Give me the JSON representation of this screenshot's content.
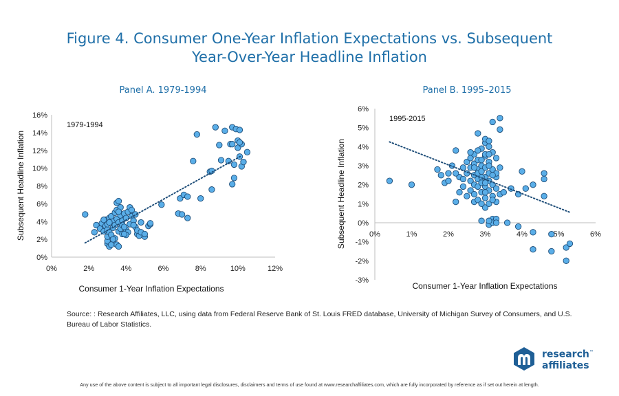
{
  "title": {
    "line1": "Figure 4. Consumer One-Year Inflation Expectations vs. Subsequent",
    "line2": "Year-Over-Year Headline Inflation"
  },
  "source": "Source: : Research Affiliates, LLC, using data from Federal Reserve Bank of St. Louis FRED database, University of Michigan Survey of Consumers, and U.S. Bureau of Labor Statistics.",
  "disclaimer": "Any use of the above content is subject to all important legal disclosures, disclaimers and terms of use found at www.researchaffiliates.com, which are fully incorporated by reference as if set out herein at length.",
  "logo": {
    "line1": "research",
    "line2": "affiliates",
    "mark_color": "#1f5f96"
  },
  "colors": {
    "title": "#1f6fa8",
    "marker_fill": "#5aaee8",
    "marker_stroke": "#1f4e79",
    "trend": "#1f4e79"
  },
  "chart_data": [
    {
      "type": "scatter",
      "title": "Panel A. 1979-1994",
      "annotation": "1979-1994",
      "xlabel": "Consumer 1-Year Inflation Expectations",
      "ylabel": "Subsequent Headline Inflation",
      "xlim": [
        0,
        12
      ],
      "ylim": [
        0,
        16
      ],
      "xticks": [
        0,
        2,
        4,
        6,
        8,
        10,
        12
      ],
      "xtick_labels": [
        "0%",
        "2%",
        "4%",
        "6%",
        "8%",
        "10%",
        "12%"
      ],
      "yticks": [
        0,
        2,
        4,
        6,
        8,
        10,
        12,
        14,
        16
      ],
      "ytick_labels": [
        "0%",
        "2%",
        "4%",
        "6%",
        "8%",
        "10%",
        "12%",
        "14%",
        "16%"
      ],
      "grid": false,
      "legend": "none",
      "trendline": {
        "style": "dotted",
        "x": [
          1.8,
          10.2
        ],
        "y": [
          1.6,
          11.4
        ]
      },
      "points": [
        [
          1.8,
          4.8
        ],
        [
          2.3,
          2.8
        ],
        [
          2.4,
          3.6
        ],
        [
          2.6,
          3.2
        ],
        [
          2.7,
          3.8
        ],
        [
          2.8,
          2.9
        ],
        [
          2.9,
          3.5
        ],
        [
          2.9,
          4.2
        ],
        [
          3.0,
          1.5
        ],
        [
          3.0,
          1.8
        ],
        [
          3.0,
          2.3
        ],
        [
          3.0,
          3.1
        ],
        [
          3.0,
          3.7
        ],
        [
          3.1,
          4.4
        ],
        [
          3.1,
          2.8
        ],
        [
          3.1,
          1.2
        ],
        [
          3.2,
          3.9
        ],
        [
          3.2,
          2.5
        ],
        [
          3.2,
          4.6
        ],
        [
          3.3,
          1.7
        ],
        [
          3.3,
          3.3
        ],
        [
          3.3,
          4.0
        ],
        [
          3.4,
          5.0
        ],
        [
          3.4,
          2.1
        ],
        [
          3.4,
          3.6
        ],
        [
          3.5,
          1.4
        ],
        [
          3.5,
          4.3
        ],
        [
          3.5,
          5.3
        ],
        [
          3.5,
          6.1
        ],
        [
          3.6,
          2.9
        ],
        [
          3.6,
          3.9
        ],
        [
          3.6,
          1.2
        ],
        [
          3.6,
          6.3
        ],
        [
          3.7,
          4.7
        ],
        [
          3.7,
          3.2
        ],
        [
          3.7,
          5.6
        ],
        [
          3.8,
          2.6
        ],
        [
          3.8,
          4.1
        ],
        [
          3.8,
          3.6
        ],
        [
          3.9,
          4.9
        ],
        [
          4.0,
          3.1
        ],
        [
          4.0,
          4.4
        ],
        [
          4.1,
          5.1
        ],
        [
          4.1,
          2.8
        ],
        [
          4.2,
          3.7
        ],
        [
          4.2,
          5.6
        ],
        [
          4.3,
          5.3
        ],
        [
          4.3,
          4.6
        ],
        [
          4.4,
          4.1
        ],
        [
          4.5,
          3.4
        ],
        [
          4.5,
          4.8
        ],
        [
          4.6,
          2.6
        ],
        [
          4.6,
          3.0
        ],
        [
          4.7,
          2.4
        ],
        [
          4.8,
          3.9
        ],
        [
          4.8,
          2.8
        ],
        [
          5.0,
          2.3
        ],
        [
          5.0,
          2.6
        ],
        [
          5.2,
          3.5
        ],
        [
          5.3,
          3.7
        ],
        [
          5.3,
          3.8
        ],
        [
          3.9,
          3.4
        ],
        [
          4.0,
          2.5
        ],
        [
          3.3,
          2.0
        ],
        [
          3.1,
          3.9
        ],
        [
          2.8,
          4.2
        ],
        [
          4.4,
          3.6
        ],
        [
          3.6,
          5.1
        ],
        [
          3.9,
          2.6
        ],
        [
          3.2,
          1.4
        ],
        [
          5.9,
          5.9
        ],
        [
          6.8,
          4.9
        ],
        [
          6.9,
          6.6
        ],
        [
          7.0,
          4.8
        ],
        [
          7.1,
          7.0
        ],
        [
          7.3,
          4.4
        ],
        [
          7.3,
          6.8
        ],
        [
          7.6,
          10.8
        ],
        [
          7.8,
          13.8
        ],
        [
          8.0,
          6.6
        ],
        [
          8.5,
          9.6
        ],
        [
          8.6,
          7.6
        ],
        [
          8.6,
          9.7
        ],
        [
          8.8,
          14.6
        ],
        [
          9.0,
          12.6
        ],
        [
          9.1,
          10.9
        ],
        [
          9.3,
          14.2
        ],
        [
          9.5,
          10.8
        ],
        [
          9.6,
          12.7
        ],
        [
          9.7,
          14.6
        ],
        [
          9.7,
          8.2
        ],
        [
          9.8,
          8.9
        ],
        [
          9.8,
          10.4
        ],
        [
          9.9,
          14.4
        ],
        [
          10.0,
          13.1
        ],
        [
          10.0,
          12.3
        ],
        [
          10.1,
          14.3
        ],
        [
          10.1,
          11.3
        ],
        [
          10.2,
          12.7
        ],
        [
          10.2,
          10.2
        ],
        [
          10.3,
          10.7
        ],
        [
          10.5,
          11.8
        ],
        [
          9.7,
          12.7
        ],
        [
          10.1,
          12.9
        ]
      ]
    },
    {
      "type": "scatter",
      "title": "Panel B. 1995–2015",
      "annotation": "1995-2015",
      "xlabel": "Consumer 1-Year Inflation Expectations",
      "ylabel": "Subsequent Headline Inflation",
      "xlim": [
        0,
        6
      ],
      "ylim": [
        -3,
        6
      ],
      "xticks": [
        0,
        1,
        2,
        3,
        4,
        5,
        6
      ],
      "xtick_labels": [
        "0%",
        "1%",
        "2%",
        "3%",
        "4%",
        "5%",
        "6%"
      ],
      "yticks": [
        -3,
        -2,
        -1,
        0,
        1,
        2,
        3,
        4,
        5,
        6
      ],
      "ytick_labels": [
        "-3%",
        "-2%",
        "-1%",
        "0%",
        "1%",
        "2%",
        "3%",
        "4%",
        "5%",
        "6%"
      ],
      "grid": false,
      "legend": "none",
      "trendline": {
        "style": "dotted",
        "x": [
          0.4,
          5.3
        ],
        "y": [
          4.25,
          0.55
        ]
      },
      "points": [
        [
          0.4,
          2.2
        ],
        [
          1.0,
          2.0
        ],
        [
          1.7,
          2.8
        ],
        [
          1.8,
          2.5
        ],
        [
          1.9,
          2.1
        ],
        [
          2.0,
          2.6
        ],
        [
          2.0,
          2.2
        ],
        [
          2.1,
          3.0
        ],
        [
          2.2,
          3.8
        ],
        [
          2.2,
          1.1
        ],
        [
          2.3,
          2.4
        ],
        [
          2.3,
          1.6
        ],
        [
          2.4,
          2.9
        ],
        [
          2.4,
          1.9
        ],
        [
          2.5,
          3.2
        ],
        [
          2.5,
          2.6
        ],
        [
          2.5,
          1.4
        ],
        [
          2.6,
          3.4
        ],
        [
          2.6,
          2.2
        ],
        [
          2.6,
          1.7
        ],
        [
          2.6,
          2.9
        ],
        [
          2.7,
          1.1
        ],
        [
          2.7,
          2.5
        ],
        [
          2.7,
          3.1
        ],
        [
          2.7,
          3.6
        ],
        [
          2.7,
          2.0
        ],
        [
          2.7,
          1.5
        ],
        [
          2.8,
          2.8
        ],
        [
          2.8,
          1.2
        ],
        [
          2.8,
          2.3
        ],
        [
          2.8,
          3.3
        ],
        [
          2.8,
          4.7
        ],
        [
          2.8,
          1.9
        ],
        [
          2.8,
          2.6
        ],
        [
          2.9,
          0.1
        ],
        [
          2.9,
          1.6
        ],
        [
          2.9,
          3.0
        ],
        [
          2.9,
          2.1
        ],
        [
          2.9,
          3.9
        ],
        [
          2.9,
          2.7
        ],
        [
          3.0,
          1.3
        ],
        [
          3.0,
          2.4
        ],
        [
          3.0,
          3.5
        ],
        [
          3.0,
          0.8
        ],
        [
          3.0,
          1.9
        ],
        [
          3.0,
          4.2
        ],
        [
          3.0,
          2.9
        ],
        [
          3.1,
          -0.1
        ],
        [
          3.1,
          2.2
        ],
        [
          3.1,
          1.0
        ],
        [
          3.1,
          3.2
        ],
        [
          3.1,
          1.7
        ],
        [
          3.1,
          2.6
        ],
        [
          3.1,
          4.0
        ],
        [
          3.2,
          0.2
        ],
        [
          3.2,
          1.4
        ],
        [
          3.2,
          2.8
        ],
        [
          3.2,
          3.7
        ],
        [
          3.2,
          2.0
        ],
        [
          3.2,
          5.3
        ],
        [
          3.3,
          1.1
        ],
        [
          3.3,
          2.4
        ],
        [
          3.3,
          3.4
        ],
        [
          3.3,
          1.8
        ],
        [
          3.3,
          0.2
        ],
        [
          3.4,
          1.5
        ],
        [
          3.4,
          2.9
        ],
        [
          3.4,
          5.5
        ],
        [
          3.4,
          4.9
        ],
        [
          3.5,
          1.6
        ],
        [
          3.6,
          0.0
        ],
        [
          3.7,
          1.8
        ],
        [
          3.9,
          1.5
        ],
        [
          3.9,
          -0.2
        ],
        [
          4.0,
          2.7
        ],
        [
          4.1,
          1.8
        ],
        [
          4.3,
          2.0
        ],
        [
          4.3,
          -0.5
        ],
        [
          4.3,
          -1.4
        ],
        [
          4.6,
          2.6
        ],
        [
          4.6,
          2.3
        ],
        [
          4.6,
          1.4
        ],
        [
          4.8,
          -0.6
        ],
        [
          4.8,
          -1.5
        ],
        [
          5.2,
          -1.3
        ],
        [
          5.2,
          -2.0
        ],
        [
          5.3,
          -1.1
        ],
        [
          2.2,
          2.6
        ],
        [
          2.4,
          2.3
        ],
        [
          2.6,
          3.7
        ],
        [
          2.8,
          3.8
        ],
        [
          2.9,
          2.4
        ],
        [
          3.0,
          3.6
        ],
        [
          3.1,
          3.6
        ],
        [
          3.0,
          1.6
        ],
        [
          2.9,
          1.0
        ],
        [
          3.2,
          1.2
        ],
        [
          3.0,
          2.1
        ],
        [
          2.7,
          2.9
        ],
        [
          3.1,
          3.0
        ],
        [
          3.3,
          2.6
        ],
        [
          2.9,
          3.3
        ],
        [
          3.2,
          2.5
        ],
        [
          3.0,
          4.4
        ],
        [
          3.1,
          4.3
        ],
        [
          3.2,
          0.0
        ],
        [
          3.1,
          0.1
        ],
        [
          3.3,
          0.0
        ]
      ]
    }
  ]
}
